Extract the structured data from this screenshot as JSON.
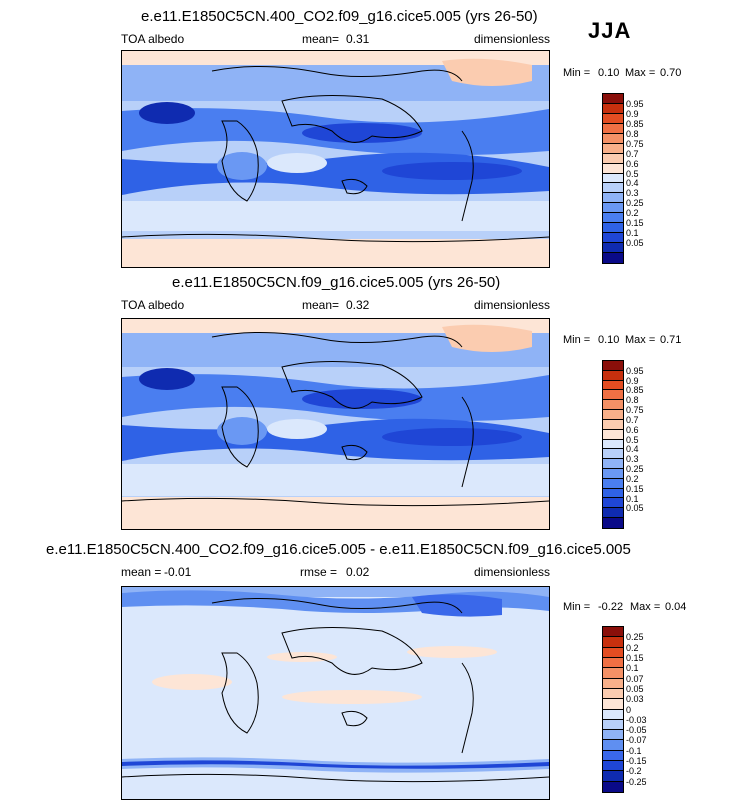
{
  "season": "JJA",
  "colors": {
    "levels_abs": [
      "#0a0a88",
      "#0f2bb0",
      "#1f46d6",
      "#2f62e6",
      "#4a7ef0",
      "#6a98f3",
      "#8fb3f6",
      "#b8d0f9",
      "#dbe8fc",
      "#fde5d6",
      "#fbccb0",
      "#f8b08a",
      "#f49166",
      "#f07044",
      "#e34d22",
      "#c7300e",
      "#8a0f0a"
    ],
    "levels_diff": [
      "#0a0a88",
      "#0f2bb0",
      "#1f46d6",
      "#3a68ea",
      "#5f8ff1",
      "#8fb3f6",
      "#b8d0f9",
      "#dbe8fc",
      "#fde5d6",
      "#fbccb0",
      "#f8b08a",
      "#f49166",
      "#f07044",
      "#e34d22",
      "#c7300e",
      "#8a0f0a"
    ]
  },
  "panels": [
    {
      "title": "e.e11.E1850C5CN.400_CO2.f09_g16.cice5.005 (yrs 26-50)",
      "left_label": "TOA albedo",
      "center_label": "mean=",
      "center_value": "0.31",
      "right_label": "dimensionless",
      "min_label": "Min =",
      "min_value": "0.10",
      "max_label": "Max =",
      "max_value": "0.70",
      "colorbar_labels": [
        "0.95",
        "0.9",
        "0.85",
        "0.8",
        "0.75",
        "0.7",
        "0.6",
        "0.5",
        "0.4",
        "0.3",
        "0.25",
        "0.2",
        "0.15",
        "0.1",
        "0.05"
      ]
    },
    {
      "title": "e.e11.E1850C5CN.f09_g16.cice5.005 (yrs 26-50)",
      "left_label": "TOA albedo",
      "center_label": "mean=",
      "center_value": "0.32",
      "right_label": "dimensionless",
      "min_label": "Min =",
      "min_value": "0.10",
      "max_label": "Max =",
      "max_value": "0.71",
      "colorbar_labels": [
        "0.95",
        "0.9",
        "0.85",
        "0.8",
        "0.75",
        "0.7",
        "0.6",
        "0.5",
        "0.4",
        "0.3",
        "0.25",
        "0.2",
        "0.15",
        "0.1",
        "0.05"
      ]
    },
    {
      "title": "e.e11.E1850C5CN.400_CO2.f09_g16.cice5.005 - e.e11.E1850C5CN.f09_g16.cice5.005",
      "left_label": "mean =",
      "left_value": "-0.01",
      "center_label": "rmse =",
      "center_value": "0.02",
      "right_label": "dimensionless",
      "min_label": "Min =",
      "min_value": "-0.22",
      "max_label": "Max =",
      "max_value": "0.04",
      "colorbar_labels": [
        "0.25",
        "0.2",
        "0.15",
        "0.1",
        "0.07",
        "0.05",
        "0.03",
        "0",
        "-0.03",
        "-0.05",
        "-0.07",
        "-0.1",
        "-0.15",
        "-0.2",
        "-0.25"
      ]
    }
  ]
}
